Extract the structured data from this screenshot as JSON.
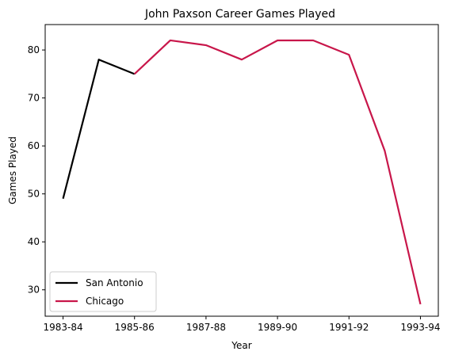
{
  "chart_data": {
    "type": "line",
    "title": "John Paxson Career Games Played",
    "xlabel": "Year",
    "ylabel": "Games Played",
    "x_tick_labels": [
      "1983-84",
      "1985-86",
      "1987-88",
      "1989-90",
      "1991-92",
      "1993-94"
    ],
    "x_tick_positions": [
      0,
      2,
      4,
      6,
      8,
      10
    ],
    "xlim": [
      -0.5,
      10.5
    ],
    "ylim": [
      24.5,
      85.3
    ],
    "y_ticks": [
      30,
      40,
      50,
      60,
      70,
      80
    ],
    "grid": false,
    "legend_position": "lower-left",
    "series": [
      {
        "name": "San Antonio",
        "color": "#000000",
        "x": [
          0,
          1,
          2
        ],
        "y": [
          49,
          78,
          75
        ]
      },
      {
        "name": "Chicago",
        "color": "#c8164a",
        "x": [
          2,
          3,
          4,
          5,
          6,
          7,
          8,
          9,
          10
        ],
        "y": [
          75,
          82,
          81,
          78,
          82,
          82,
          79,
          59,
          27
        ]
      }
    ]
  }
}
